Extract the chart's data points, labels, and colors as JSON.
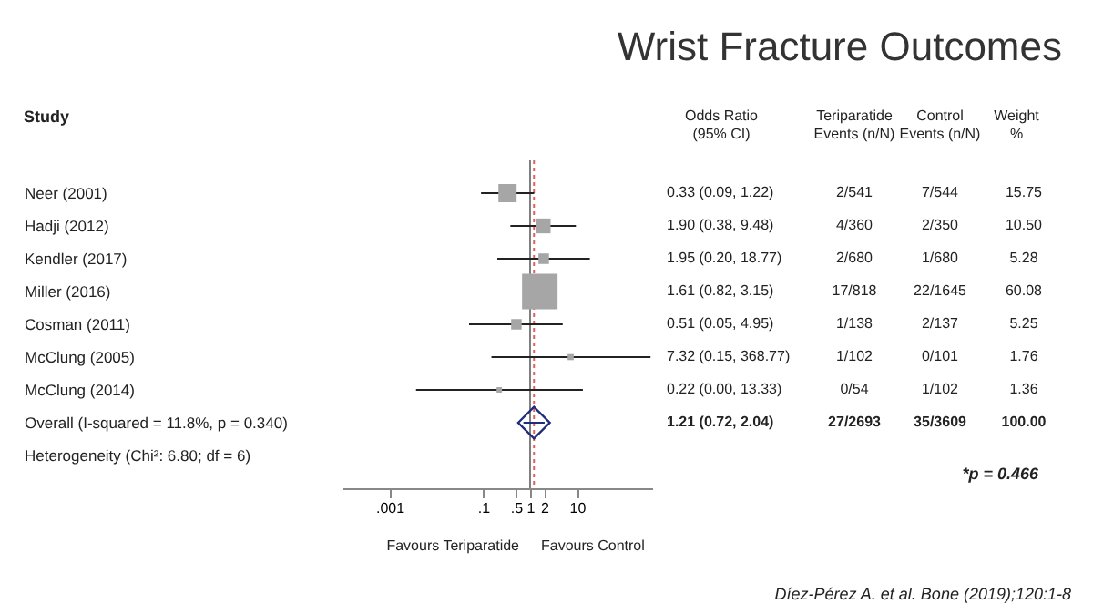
{
  "chart_data": {
    "type": "scatter",
    "orientation": "horizontal",
    "title": "Wrist Fracture Outcomes",
    "ylabel": "Study",
    "categories": [
      "Neer (2001)",
      "Hadji (2012)",
      "Kendler (2017)",
      "Miller (2016)",
      "Cosman (2011)",
      "McClung (2005)",
      "McClung (2014)",
      "Overall  (I-squared = 11.8%, p = 0.340)",
      "Heterogeneity (Chi²: 6.80; df = 6)"
    ],
    "series": [
      {
        "type": "bubble",
        "marker": "square",
        "color": "#a6a6a6",
        "values": [
          0.33,
          1.9,
          1.95,
          1.61,
          0.51,
          7.32,
          0.22,
          null,
          null
        ],
        "errors": [
          [
            0.09,
            1.22
          ],
          [
            0.38,
            9.48
          ],
          [
            0.2,
            18.77
          ],
          [
            0.82,
            3.15
          ],
          [
            0.05,
            4.95
          ],
          [
            0.15,
            368.77
          ],
          [
            0.0037,
            13.33
          ],
          null,
          null
        ],
        "sizes": [
          0.262,
          0.175,
          0.088,
          1,
          0.087,
          0.029,
          0.023,
          null,
          null
        ]
      },
      {
        "type": "scatter",
        "marker": "diamond",
        "color": "#1f2d7a",
        "values": [
          null,
          null,
          null,
          null,
          null,
          null,
          null,
          1.21,
          null
        ],
        "errors": [
          null,
          null,
          null,
          null,
          null,
          null,
          null,
          [
            0.72,
            2.04
          ],
          null
        ]
      }
    ],
    "log": "x",
    "xlim": [
      0.0001,
      400
    ],
    "xticks": [
      {
        "value": 0.001,
        "label": ".001"
      },
      {
        "value": 0.1,
        "label": ".1"
      },
      {
        "value": 0.5,
        "label": ".5"
      },
      1,
      2,
      10
    ],
    "ref_lines": [
      {
        "axis": "x",
        "value": 1,
        "color": "#808080",
        "line_style": "solid"
      },
      {
        "axis": "x",
        "value": 1.21,
        "color": "#e06060",
        "line_style": "dotted"
      }
    ],
    "grid": false,
    "legend": false,
    "annotations": [
      "Odds Ratio\n(95% CI)",
      "Teriparatide\nEvents (n/N)",
      "Control\nEvents (n/N)",
      "Weight\n%",
      "Favours Teriparatide",
      "Favours Control",
      "*p = 0.466",
      "Díez-Pérez A. et al. Bone (2019);120:1-8",
      "0.33 (0.09, 1.22)",
      "2/541",
      "7/544",
      "15.75",
      "1.90 (0.38, 9.48)",
      "4/360",
      "2/350",
      "10.50",
      "1.95 (0.20, 18.77)",
      "2/680",
      "1/680",
      "5.28",
      "1.61 (0.82, 3.15)",
      "17/818",
      "22/1645",
      "60.08",
      "0.51 (0.05, 4.95)",
      "1/138",
      "2/137",
      "5.25",
      "7.32 (0.15, 368.77)",
      "1/102",
      "0/101",
      "1.76",
      "0.22 (0.00, 13.33)",
      "0/54",
      "1/102",
      "1.36",
      "1.21 (0.72, 2.04)",
      "27/2693",
      "35/3609",
      "100.00"
    ]
  }
}
